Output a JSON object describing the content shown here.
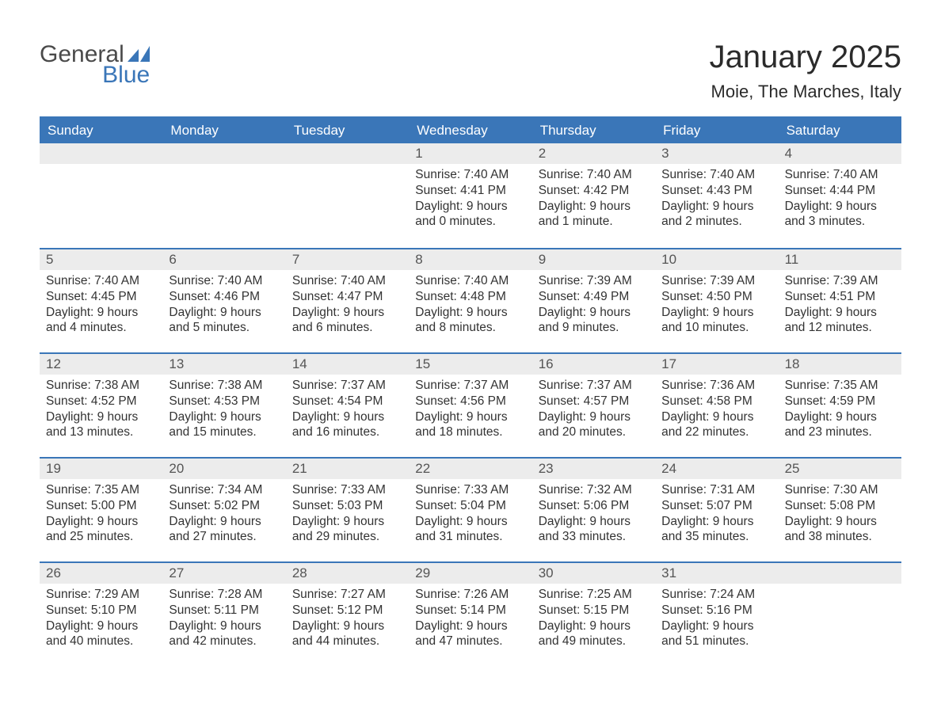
{
  "logo": {
    "text_general": "General",
    "text_blue": "Blue",
    "icon_color": "#3a76b8"
  },
  "title": {
    "month": "January 2025",
    "location": "Moie, The Marches, Italy"
  },
  "colors": {
    "header_bg": "#3a76b8",
    "header_text": "#ffffff",
    "daynum_bg": "#ececec",
    "daynum_text": "#555555",
    "body_text": "#333333",
    "rule": "#3a76b8",
    "background": "#ffffff"
  },
  "day_headers": [
    "Sunday",
    "Monday",
    "Tuesday",
    "Wednesday",
    "Thursday",
    "Friday",
    "Saturday"
  ],
  "weeks": [
    [
      {
        "blank": true
      },
      {
        "blank": true
      },
      {
        "blank": true
      },
      {
        "day": "1",
        "sunrise": "Sunrise: 7:40 AM",
        "sunset": "Sunset: 4:41 PM",
        "daylight1": "Daylight: 9 hours",
        "daylight2": "and 0 minutes."
      },
      {
        "day": "2",
        "sunrise": "Sunrise: 7:40 AM",
        "sunset": "Sunset: 4:42 PM",
        "daylight1": "Daylight: 9 hours",
        "daylight2": "and 1 minute."
      },
      {
        "day": "3",
        "sunrise": "Sunrise: 7:40 AM",
        "sunset": "Sunset: 4:43 PM",
        "daylight1": "Daylight: 9 hours",
        "daylight2": "and 2 minutes."
      },
      {
        "day": "4",
        "sunrise": "Sunrise: 7:40 AM",
        "sunset": "Sunset: 4:44 PM",
        "daylight1": "Daylight: 9 hours",
        "daylight2": "and 3 minutes."
      }
    ],
    [
      {
        "day": "5",
        "sunrise": "Sunrise: 7:40 AM",
        "sunset": "Sunset: 4:45 PM",
        "daylight1": "Daylight: 9 hours",
        "daylight2": "and 4 minutes."
      },
      {
        "day": "6",
        "sunrise": "Sunrise: 7:40 AM",
        "sunset": "Sunset: 4:46 PM",
        "daylight1": "Daylight: 9 hours",
        "daylight2": "and 5 minutes."
      },
      {
        "day": "7",
        "sunrise": "Sunrise: 7:40 AM",
        "sunset": "Sunset: 4:47 PM",
        "daylight1": "Daylight: 9 hours",
        "daylight2": "and 6 minutes."
      },
      {
        "day": "8",
        "sunrise": "Sunrise: 7:40 AM",
        "sunset": "Sunset: 4:48 PM",
        "daylight1": "Daylight: 9 hours",
        "daylight2": "and 8 minutes."
      },
      {
        "day": "9",
        "sunrise": "Sunrise: 7:39 AM",
        "sunset": "Sunset: 4:49 PM",
        "daylight1": "Daylight: 9 hours",
        "daylight2": "and 9 minutes."
      },
      {
        "day": "10",
        "sunrise": "Sunrise: 7:39 AM",
        "sunset": "Sunset: 4:50 PM",
        "daylight1": "Daylight: 9 hours",
        "daylight2": "and 10 minutes."
      },
      {
        "day": "11",
        "sunrise": "Sunrise: 7:39 AM",
        "sunset": "Sunset: 4:51 PM",
        "daylight1": "Daylight: 9 hours",
        "daylight2": "and 12 minutes."
      }
    ],
    [
      {
        "day": "12",
        "sunrise": "Sunrise: 7:38 AM",
        "sunset": "Sunset: 4:52 PM",
        "daylight1": "Daylight: 9 hours",
        "daylight2": "and 13 minutes."
      },
      {
        "day": "13",
        "sunrise": "Sunrise: 7:38 AM",
        "sunset": "Sunset: 4:53 PM",
        "daylight1": "Daylight: 9 hours",
        "daylight2": "and 15 minutes."
      },
      {
        "day": "14",
        "sunrise": "Sunrise: 7:37 AM",
        "sunset": "Sunset: 4:54 PM",
        "daylight1": "Daylight: 9 hours",
        "daylight2": "and 16 minutes."
      },
      {
        "day": "15",
        "sunrise": "Sunrise: 7:37 AM",
        "sunset": "Sunset: 4:56 PM",
        "daylight1": "Daylight: 9 hours",
        "daylight2": "and 18 minutes."
      },
      {
        "day": "16",
        "sunrise": "Sunrise: 7:37 AM",
        "sunset": "Sunset: 4:57 PM",
        "daylight1": "Daylight: 9 hours",
        "daylight2": "and 20 minutes."
      },
      {
        "day": "17",
        "sunrise": "Sunrise: 7:36 AM",
        "sunset": "Sunset: 4:58 PM",
        "daylight1": "Daylight: 9 hours",
        "daylight2": "and 22 minutes."
      },
      {
        "day": "18",
        "sunrise": "Sunrise: 7:35 AM",
        "sunset": "Sunset: 4:59 PM",
        "daylight1": "Daylight: 9 hours",
        "daylight2": "and 23 minutes."
      }
    ],
    [
      {
        "day": "19",
        "sunrise": "Sunrise: 7:35 AM",
        "sunset": "Sunset: 5:00 PM",
        "daylight1": "Daylight: 9 hours",
        "daylight2": "and 25 minutes."
      },
      {
        "day": "20",
        "sunrise": "Sunrise: 7:34 AM",
        "sunset": "Sunset: 5:02 PM",
        "daylight1": "Daylight: 9 hours",
        "daylight2": "and 27 minutes."
      },
      {
        "day": "21",
        "sunrise": "Sunrise: 7:33 AM",
        "sunset": "Sunset: 5:03 PM",
        "daylight1": "Daylight: 9 hours",
        "daylight2": "and 29 minutes."
      },
      {
        "day": "22",
        "sunrise": "Sunrise: 7:33 AM",
        "sunset": "Sunset: 5:04 PM",
        "daylight1": "Daylight: 9 hours",
        "daylight2": "and 31 minutes."
      },
      {
        "day": "23",
        "sunrise": "Sunrise: 7:32 AM",
        "sunset": "Sunset: 5:06 PM",
        "daylight1": "Daylight: 9 hours",
        "daylight2": "and 33 minutes."
      },
      {
        "day": "24",
        "sunrise": "Sunrise: 7:31 AM",
        "sunset": "Sunset: 5:07 PM",
        "daylight1": "Daylight: 9 hours",
        "daylight2": "and 35 minutes."
      },
      {
        "day": "25",
        "sunrise": "Sunrise: 7:30 AM",
        "sunset": "Sunset: 5:08 PM",
        "daylight1": "Daylight: 9 hours",
        "daylight2": "and 38 minutes."
      }
    ],
    [
      {
        "day": "26",
        "sunrise": "Sunrise: 7:29 AM",
        "sunset": "Sunset: 5:10 PM",
        "daylight1": "Daylight: 9 hours",
        "daylight2": "and 40 minutes."
      },
      {
        "day": "27",
        "sunrise": "Sunrise: 7:28 AM",
        "sunset": "Sunset: 5:11 PM",
        "daylight1": "Daylight: 9 hours",
        "daylight2": "and 42 minutes."
      },
      {
        "day": "28",
        "sunrise": "Sunrise: 7:27 AM",
        "sunset": "Sunset: 5:12 PM",
        "daylight1": "Daylight: 9 hours",
        "daylight2": "and 44 minutes."
      },
      {
        "day": "29",
        "sunrise": "Sunrise: 7:26 AM",
        "sunset": "Sunset: 5:14 PM",
        "daylight1": "Daylight: 9 hours",
        "daylight2": "and 47 minutes."
      },
      {
        "day": "30",
        "sunrise": "Sunrise: 7:25 AM",
        "sunset": "Sunset: 5:15 PM",
        "daylight1": "Daylight: 9 hours",
        "daylight2": "and 49 minutes."
      },
      {
        "day": "31",
        "sunrise": "Sunrise: 7:24 AM",
        "sunset": "Sunset: 5:16 PM",
        "daylight1": "Daylight: 9 hours",
        "daylight2": "and 51 minutes."
      },
      {
        "blank": true
      }
    ]
  ]
}
